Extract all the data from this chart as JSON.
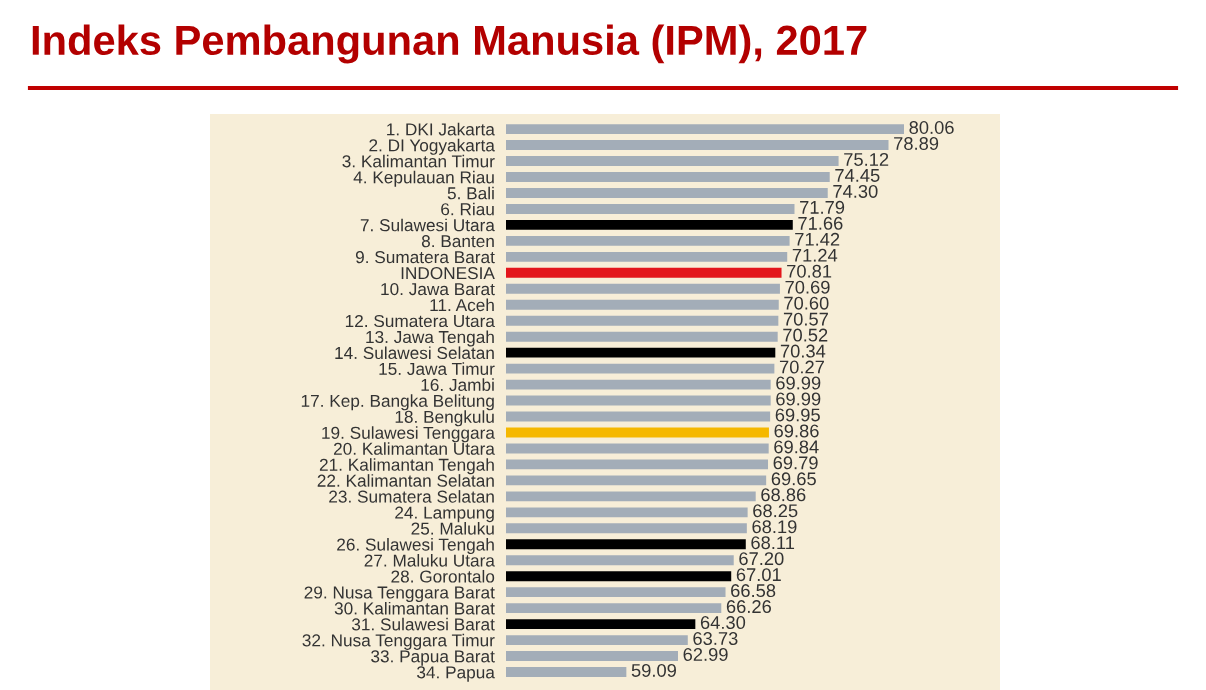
{
  "chart_data": {
    "type": "bar",
    "orientation": "horizontal",
    "title": "Indeks Pembangunan Manusia (IPM), 2017",
    "categories": [
      "1. DKI Jakarta",
      "2. DI Yogyakarta",
      "3. Kalimantan Timur",
      "4. Kepulauan Riau",
      "5. Bali",
      "6. Riau",
      "7. Sulawesi Utara",
      "8. Banten",
      "9. Sumatera Barat",
      "INDONESIA",
      "10. Jawa Barat",
      "11. Aceh",
      "12. Sumatera Utara",
      "13. Jawa Tengah",
      "14. Sulawesi Selatan",
      "15. Jawa Timur",
      "16. Jambi",
      "17. Kep. Bangka Belitung",
      "18. Bengkulu",
      "19. Sulawesi Tenggara",
      "20. Kalimantan Utara",
      "21. Kalimantan Tengah",
      "22. Kalimantan Selatan",
      "23. Sumatera Selatan",
      "24. Lampung",
      "25. Maluku",
      "26. Sulawesi Tengah",
      "27. Maluku Utara",
      "28. Gorontalo",
      "29. Nusa Tenggara Barat",
      "30. Kalimantan Barat",
      "31. Sulawesi Barat",
      "32. Nusa Tenggara Timur",
      "33. Papua Barat",
      "34. Papua"
    ],
    "values": [
      80.06,
      78.89,
      75.12,
      74.45,
      74.3,
      71.79,
      71.66,
      71.42,
      71.24,
      70.81,
      70.69,
      70.6,
      70.57,
      70.52,
      70.34,
      70.27,
      69.99,
      69.99,
      69.95,
      69.86,
      69.84,
      69.79,
      69.65,
      68.86,
      68.25,
      68.19,
      68.11,
      67.2,
      67.01,
      66.58,
      66.26,
      64.3,
      63.73,
      62.99,
      59.09
    ],
    "colors": [
      "#a3adb8",
      "#a3adb8",
      "#a3adb8",
      "#a3adb8",
      "#a3adb8",
      "#a3adb8",
      "#000000",
      "#a3adb8",
      "#a3adb8",
      "#e3161b",
      "#a3adb8",
      "#a3adb8",
      "#a3adb8",
      "#a3adb8",
      "#000000",
      "#a3adb8",
      "#a3adb8",
      "#a3adb8",
      "#a3adb8",
      "#f5b800",
      "#a3adb8",
      "#a3adb8",
      "#a3adb8",
      "#a3adb8",
      "#a3adb8",
      "#a3adb8",
      "#000000",
      "#a3adb8",
      "#000000",
      "#a3adb8",
      "#a3adb8",
      "#000000",
      "#a3adb8",
      "#a3adb8",
      "#a3adb8"
    ],
    "value_labels": [
      "80.06",
      "78.89",
      "75.12",
      "74.45",
      "74.30",
      "71.79",
      "71.66",
      "71.42",
      "71.24",
      "70.81",
      "70.69",
      "70.60",
      "70.57",
      "70.52",
      "70.34",
      "70.27",
      "69.99",
      "69.99",
      "69.95",
      "69.86",
      "69.84",
      "69.79",
      "69.65",
      "68.86",
      "68.25",
      "68.19",
      "68.11",
      "67.20",
      "67.01",
      "66.58",
      "66.26",
      "64.30",
      "63.73",
      "62.99",
      "59.09"
    ],
    "xlim": [
      50,
      80.06
    ],
    "tick_labels": "y",
    "grid": false,
    "legend": false
  }
}
